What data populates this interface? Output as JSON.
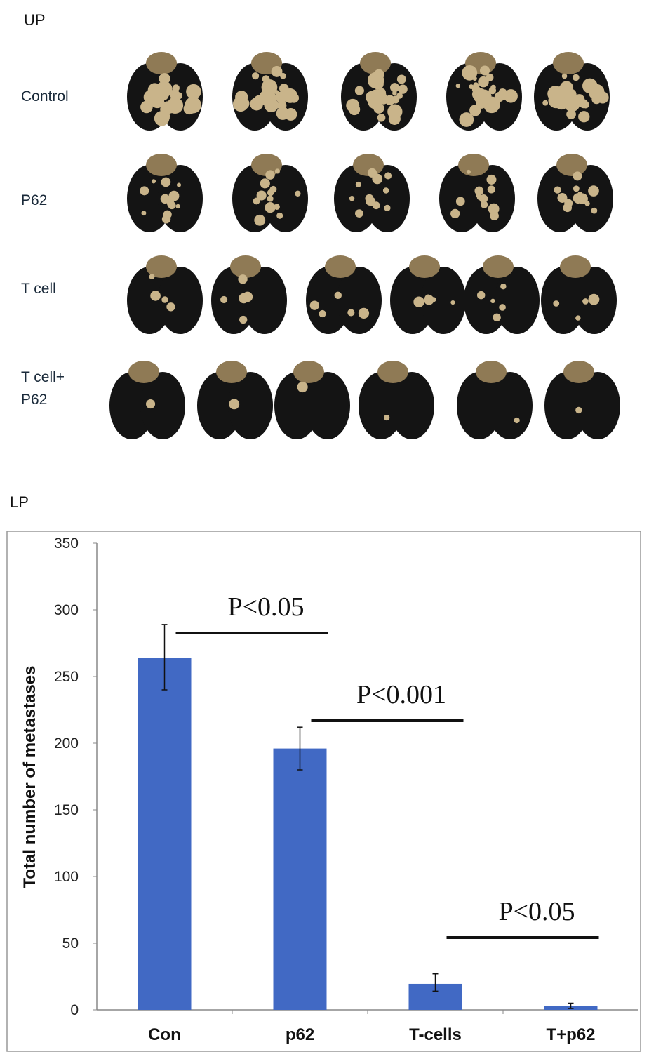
{
  "panels": {
    "upper": "UP",
    "lower": "LP"
  },
  "photo": {
    "rows": [
      {
        "label": "Control",
        "lungs": 5
      },
      {
        "label": "P62",
        "lungs": 5
      },
      {
        "label": "T cell",
        "lungs": 6
      },
      {
        "label": "T cell+\nP62",
        "lungs": 6
      }
    ],
    "colors": {
      "lung": "#141414",
      "nodule": "#c9b48a",
      "heart": "#8f7a55"
    }
  },
  "chart_data": {
    "type": "bar",
    "title": "",
    "xlabel": "",
    "ylabel": "Total number of metastases",
    "categories": [
      "Con",
      "p62",
      "T-cells",
      "T+p62"
    ],
    "values": [
      264,
      196,
      19.5,
      3
    ],
    "error_low": [
      240,
      180,
      14,
      1
    ],
    "error_high": [
      289,
      212,
      27,
      5
    ],
    "ylim": [
      0,
      350
    ],
    "yticks": [
      0,
      50,
      100,
      150,
      200,
      250,
      300,
      350
    ],
    "grid": false,
    "bar_color": "#4169c4",
    "annotations": [
      {
        "text": "P<0.05",
        "from": "Con",
        "to": "p62"
      },
      {
        "text": "P<0.001",
        "from": "p62",
        "to": "T-cells"
      },
      {
        "text": "P<0.05",
        "from": "T-cells",
        "to": "T+p62"
      }
    ]
  }
}
